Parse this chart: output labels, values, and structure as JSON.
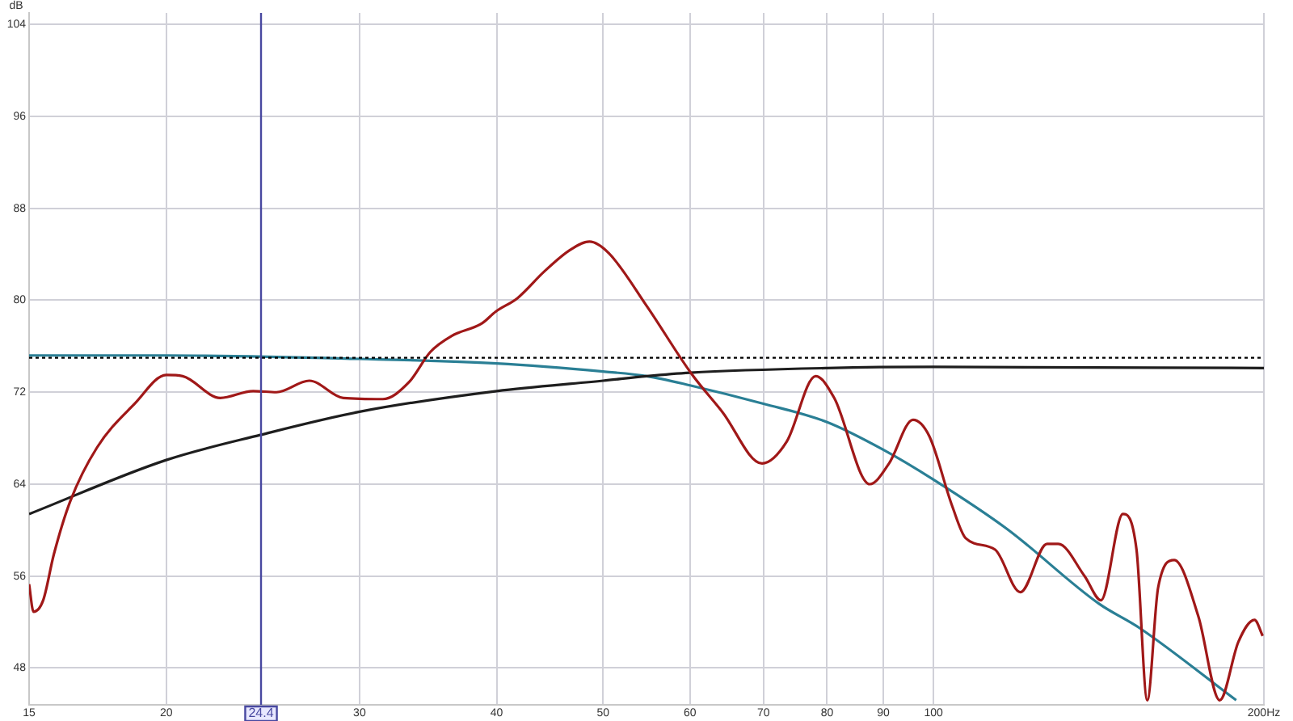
{
  "chart_data": {
    "type": "line",
    "ylabel": "dB",
    "log": "x",
    "grid": true,
    "legend": false,
    "marker": "none",
    "line_style": "solid",
    "xlim": [
      15,
      200
    ],
    "xticks": [
      15,
      20,
      30,
      40,
      50,
      60,
      70,
      80,
      90,
      100,
      {
        "value": 200,
        "label": "200Hz"
      }
    ],
    "ylim": [
      44.8,
      105
    ],
    "yticks": [
      48,
      56,
      64,
      72,
      80,
      88,
      96,
      104
    ],
    "ref_lines": [
      {
        "axis": "y",
        "value": 75,
        "color": "#000000",
        "line_style": "dotted"
      },
      {
        "axis": "x",
        "value": 24.4,
        "label": "24.4",
        "color": "#4848a0"
      }
    ],
    "series": [
      {
        "color": "#a01818",
        "x": [
          15,
          15.14,
          15.45,
          15.8,
          16.35,
          17.3,
          18.72,
          20.0,
          20.7,
          22.4,
          24.0,
          25.2,
          27.0,
          29.0,
          31.5,
          33.3,
          34.8,
          36.4,
          38.8,
          39.9,
          41.8,
          44.2,
          46.7,
          48.6,
          50.6,
          54.8,
          60.2,
          64.2,
          69.8,
          73.5,
          78.1,
          81.2,
          87.5,
          91.1,
          95.8,
          99.1,
          104.0,
          107.0,
          113.8,
          120.0,
          126.9,
          129.9,
          137.3,
          142.1,
          148.8,
          153.1,
          156.6,
          160.2,
          165.7,
          174.3,
          182.3,
          189.6,
          196.1,
          199.5
        ],
        "values": [
          55.3,
          52.9,
          53.9,
          57.9,
          62.5,
          67.2,
          71.0,
          73.5,
          73.4,
          71.5,
          72.1,
          72.0,
          73.0,
          71.5,
          71.4,
          72.9,
          75.5,
          76.9,
          78.0,
          79.0,
          80.2,
          82.5,
          84.4,
          85.1,
          84.1,
          79.5,
          73.6,
          70.3,
          65.8,
          67.7,
          73.4,
          71.5,
          64.0,
          65.8,
          69.6,
          68.2,
          62.1,
          59.3,
          58.3,
          54.6,
          58.8,
          58.8,
          56.0,
          53.9,
          61.4,
          58.3,
          45.2,
          55.0,
          57.4,
          52.5,
          45.2,
          50.3,
          52.2,
          50.8
        ]
      },
      {
        "color": "#1e1e1e",
        "x": [
          15,
          20,
          24.4,
          30,
          40,
          50,
          54.8,
          60,
          80,
          100,
          200
        ],
        "values": [
          61.4,
          66.1,
          68.3,
          70.3,
          72.1,
          73.0,
          73.4,
          73.7,
          74.1,
          74.2,
          74.1
        ]
      },
      {
        "color": "#2a7f95",
        "x": [
          15,
          20,
          30,
          40,
          50,
          54.8,
          60,
          70,
          80,
          90,
          100,
          116.7,
          141.5,
          154,
          188.7
        ],
        "values": [
          75.2,
          75.2,
          74.9,
          74.5,
          73.8,
          73.4,
          72.6,
          71.0,
          69.4,
          67.0,
          64.4,
          60.1,
          53.6,
          51.5,
          45.2
        ]
      }
    ]
  }
}
